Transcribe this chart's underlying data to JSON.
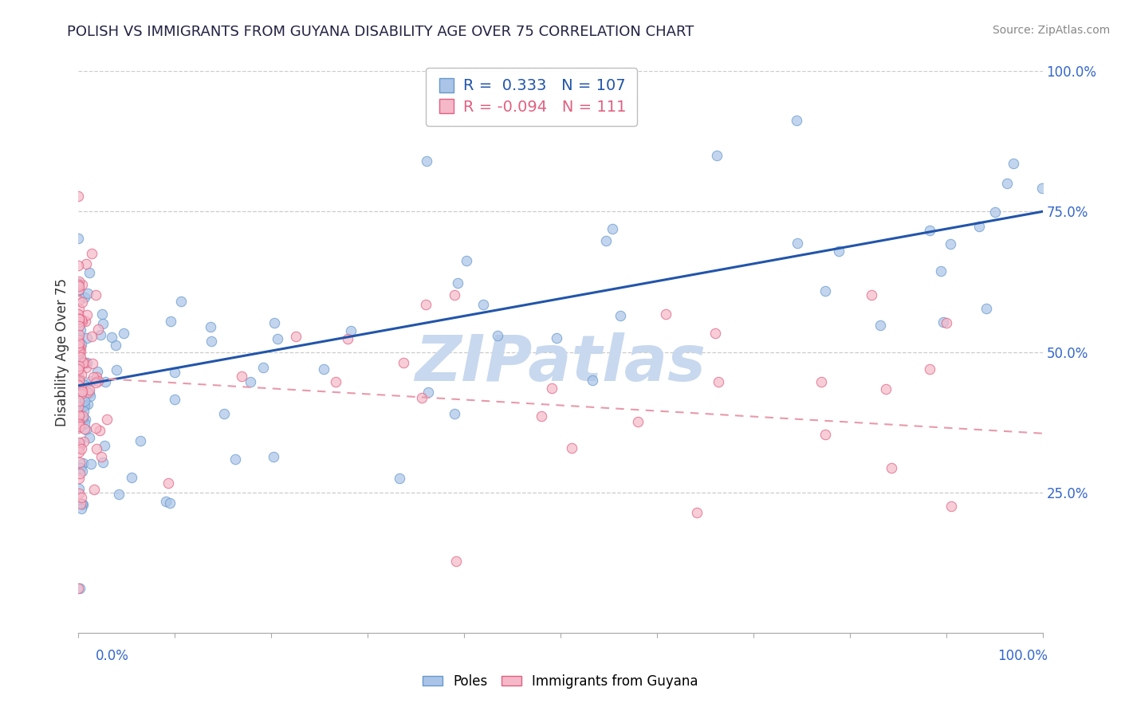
{
  "title": "POLISH VS IMMIGRANTS FROM GUYANA DISABILITY AGE OVER 75 CORRELATION CHART",
  "source": "Source: ZipAtlas.com",
  "ylabel": "Disability Age Over 75",
  "xlim": [
    0,
    1.0
  ],
  "ylim": [
    0,
    1.0
  ],
  "ytick_labels": [
    "25.0%",
    "50.0%",
    "75.0%",
    "100.0%"
  ],
  "ytick_values": [
    0.25,
    0.5,
    0.75,
    1.0
  ],
  "R_poles": 0.333,
  "N_poles": 107,
  "R_guyana": -0.094,
  "N_guyana": 111,
  "color_poles_face": "#aac4e8",
  "color_poles_edge": "#6699cc",
  "color_guyana_face": "#f5b8c8",
  "color_guyana_edge": "#e06080",
  "color_trendline_poles": "#2255aa",
  "color_trendline_guyana": "#e899aa",
  "watermark_color": "#c8d8ee",
  "gridline_color": "#cccccc",
  "background_color": "#ffffff",
  "legend_edge_color": "#bbbbbb",
  "title_color": "#222244",
  "source_color": "#888888",
  "axis_label_color": "#3366cc",
  "ylabel_color": "#333333",
  "poles_trendline_start_y": 0.44,
  "poles_trendline_end_y": 0.75,
  "guyana_trendline_start_y": 0.455,
  "guyana_trendline_end_y": 0.355
}
